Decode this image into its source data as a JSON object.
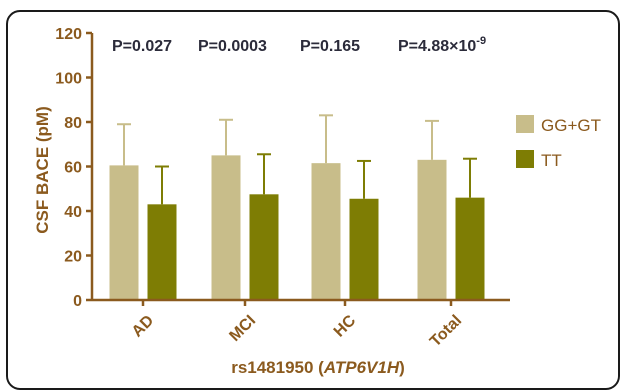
{
  "chart_data": {
    "type": "bar",
    "ylabel": "CSF BACE (pM)",
    "xlabel_prefix": "rs1481950 (",
    "xlabel_gene": "ATP6V1H",
    "xlabel_suffix": ")",
    "categories": [
      "AD",
      "MCI",
      "HC",
      "Total"
    ],
    "ylim": [
      0,
      120
    ],
    "yticks": [
      "0",
      "20",
      "40",
      "60",
      "80",
      "100",
      "120"
    ],
    "legend_position": "right",
    "colors": {
      "GG+GT": "#c8bd8a",
      "TT": "#7e7d04",
      "axis": "#8b5a1e",
      "ptext": "#2b2b3a"
    },
    "series": [
      {
        "name": "GG+GT",
        "values": [
          60.5,
          65,
          61.5,
          63
        ],
        "errors": [
          18.5,
          16,
          21.5,
          17.5
        ]
      },
      {
        "name": "TT",
        "values": [
          43,
          47.5,
          45.5,
          46
        ],
        "errors": [
          17,
          18,
          17,
          17.5
        ]
      }
    ],
    "p_values": [
      {
        "main": "P=0.027",
        "sup": ""
      },
      {
        "main": "P=0.0003",
        "sup": ""
      },
      {
        "main": "P=0.165",
        "sup": ""
      },
      {
        "main": "P=4.88×10",
        "sup": "-9"
      }
    ]
  }
}
